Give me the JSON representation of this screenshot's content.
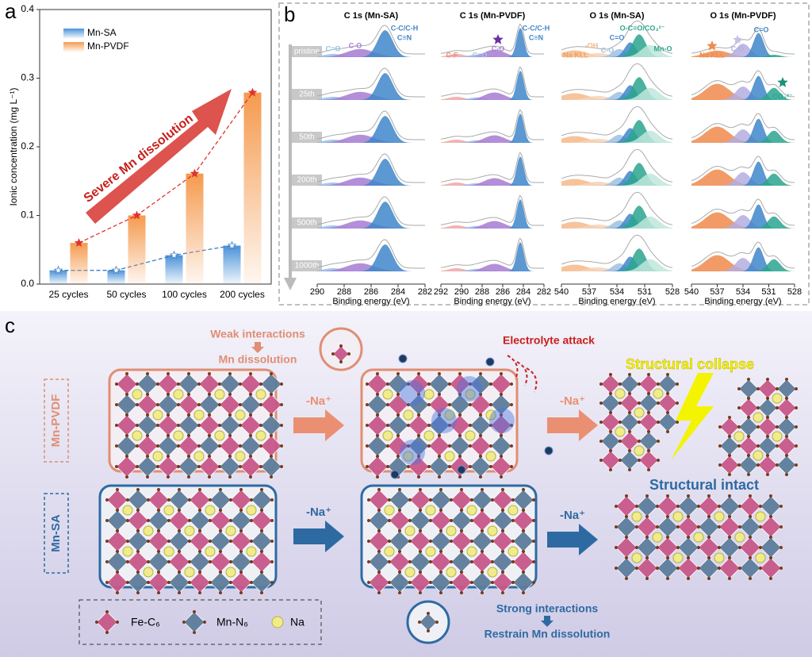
{
  "chart_data": {
    "type": "bar",
    "panel_label": "a",
    "ylabel": "Ionic concentration (mg L⁻¹)",
    "annotation": "Severe Mn dissolution",
    "categories": [
      "25 cycles",
      "50 cycles",
      "100 cycles",
      "200 cycles"
    ],
    "series": [
      {
        "name": "Mn-SA",
        "color": "#4a92d8",
        "line_color": "#3b7cc4",
        "values": [
          0.02,
          0.02,
          0.042,
          0.056
        ]
      },
      {
        "name": "Mn-PVDF",
        "color": "#f59a4e",
        "line_color": "#e0342c",
        "values": [
          0.06,
          0.1,
          0.161,
          0.279
        ]
      }
    ],
    "ylim": [
      0,
      0.4
    ],
    "yticks": [
      {
        "value": 0,
        "label": "0.0"
      },
      0.1,
      0.2,
      0.3,
      0.4
    ]
  },
  "panel_b": {
    "label": "b",
    "cycles": [
      "pristine",
      "25th",
      "50th",
      "200th",
      "500th",
      "1000th"
    ],
    "subpanels": [
      {
        "title": "C 1s (Mn-SA)",
        "xlabel": "Binding energy (eV)",
        "xticks": [
          "290",
          "288",
          "286",
          "284",
          "282"
        ],
        "peak_labels": [
          "C=O",
          "C-O",
          "C-C/C-H",
          "C≡N"
        ]
      },
      {
        "title": "C 1s (Mn-PVDF)",
        "xlabel": "Binding energy (eV)",
        "xticks": [
          "292",
          "290",
          "288",
          "286",
          "284",
          "282"
        ],
        "peak_labels": [
          "C-F",
          "C=O",
          "C-O",
          "C-C/C-H",
          "C≡N"
        ]
      },
      {
        "title": "O 1s (Mn-SA)",
        "xlabel": "Binding energy (eV)",
        "xticks": [
          "540",
          "537",
          "534",
          "531",
          "528"
        ],
        "peak_labels": [
          "Na KLL",
          "-OH",
          "C-O",
          "C=O",
          "O-C=O/CO₃²⁻",
          "Mn-O"
        ]
      },
      {
        "title": "O 1s (Mn-PVDF)",
        "xlabel": "Binding energy (eV)",
        "xticks": [
          "540",
          "537",
          "534",
          "531",
          "528"
        ],
        "peak_labels": [
          "Na KLL",
          "C-O",
          "C=O",
          "CO₃²⁻"
        ]
      }
    ]
  },
  "panel_c": {
    "label": "c",
    "row_labels": [
      "Mn-PVDF",
      "Mn-SA"
    ],
    "weak": [
      "Weak interactions",
      "Mn dissolution"
    ],
    "attack": "Electrolyte attack",
    "collapse": "Structural collapse",
    "intact": "Structural intact",
    "step": [
      "-Na⁺",
      "-Na⁺",
      "-Na⁺",
      "-Na⁺"
    ],
    "strong": [
      "Strong interactions",
      "Restrain Mn dissolution"
    ],
    "legend": [
      "Fe-C₆",
      "Mn-N₆",
      "Na"
    ]
  }
}
